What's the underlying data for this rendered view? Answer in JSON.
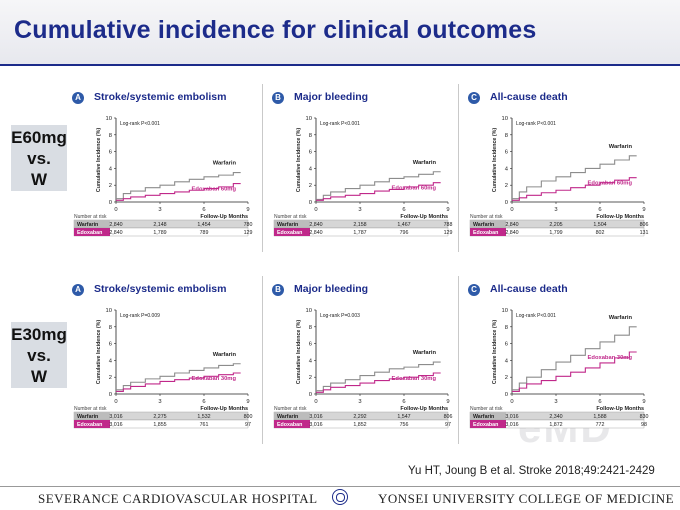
{
  "title": "Cumulative incidence for clinical outcomes",
  "rows": [
    {
      "label": [
        "E60mg",
        "vs.",
        "W"
      ]
    },
    {
      "label": [
        "E30mg",
        "vs.",
        "W"
      ]
    }
  ],
  "common": {
    "ylabel": "Cumulative Incidence (%)",
    "xlabel": "Follow-Up Months",
    "risk_title": "Number at risk",
    "warfarin_color": "#8c8c8c",
    "edoxaban_color": "#c0288a"
  },
  "chart_data": [
    {
      "type": "line",
      "panel_letter": "A",
      "title": "Stroke/systemic embolism",
      "logrank": "Log-rank P<0.001",
      "x_ticks": [
        0,
        3,
        6,
        9
      ],
      "y_ticks": [
        0,
        2,
        4,
        6,
        8,
        10
      ],
      "xlim": [
        0,
        9
      ],
      "ylim": [
        0,
        10
      ],
      "series": [
        {
          "name": "Warfarin",
          "x": [
            0,
            0.5,
            1,
            2,
            3,
            4,
            5,
            6,
            7,
            8,
            8.5
          ],
          "y": [
            0.4,
            1.0,
            1.3,
            1.7,
            2.0,
            2.4,
            2.7,
            3.0,
            3.2,
            3.5,
            3.5
          ]
        },
        {
          "name": "Edoxaban 60mg",
          "x": [
            0,
            0.5,
            1,
            2,
            3,
            4,
            5,
            6,
            7,
            8,
            8.5
          ],
          "y": [
            0.2,
            0.4,
            0.6,
            0.8,
            1.0,
            1.2,
            1.4,
            1.6,
            1.8,
            2.2,
            2.2
          ]
        }
      ],
      "risk_table": {
        "Warfarin": [
          "2,840",
          "2,148",
          "1,454",
          "780"
        ],
        "Edoxaban": [
          "2,840",
          "1,789",
          "789",
          "129"
        ]
      }
    },
    {
      "type": "line",
      "panel_letter": "B",
      "title": "Major bleeding",
      "logrank": "Log-rank P<0.001",
      "x_ticks": [
        0,
        3,
        6,
        9
      ],
      "y_ticks": [
        0,
        2,
        4,
        6,
        8,
        10
      ],
      "xlim": [
        0,
        9
      ],
      "ylim": [
        0,
        10
      ],
      "series": [
        {
          "name": "Warfarin",
          "x": [
            0,
            0.5,
            1,
            2,
            3,
            4,
            5,
            6,
            7,
            8,
            8.5
          ],
          "y": [
            0.3,
            0.8,
            1.2,
            1.6,
            2.0,
            2.4,
            2.8,
            3.0,
            3.3,
            3.6,
            3.6
          ]
        },
        {
          "name": "Edoxaban 60mg",
          "x": [
            0,
            0.5,
            1,
            2,
            3,
            4,
            5,
            6,
            7,
            8,
            8.5
          ],
          "y": [
            0.2,
            0.4,
            0.6,
            0.8,
            1.0,
            1.3,
            1.5,
            1.8,
            2.0,
            2.3,
            2.3
          ]
        }
      ],
      "risk_table": {
        "Warfarin": [
          "2,840",
          "2,158",
          "1,467",
          "788"
        ],
        "Edoxaban": [
          "2,840",
          "1,787",
          "796",
          "129"
        ]
      }
    },
    {
      "type": "line",
      "panel_letter": "C",
      "title": "All-cause death",
      "logrank": "Log-rank P<0.001",
      "x_ticks": [
        0,
        3,
        6,
        9
      ],
      "y_ticks": [
        0,
        2,
        4,
        6,
        8,
        10
      ],
      "xlim": [
        0,
        9
      ],
      "ylim": [
        0,
        10
      ],
      "series": [
        {
          "name": "Warfarin",
          "x": [
            0,
            0.5,
            1,
            2,
            3,
            4,
            5,
            6,
            7,
            8,
            8.5
          ],
          "y": [
            0.4,
            1.2,
            1.8,
            2.5,
            3.0,
            3.5,
            4.0,
            4.5,
            5.0,
            5.5,
            5.5
          ]
        },
        {
          "name": "Edoxaban 60mg",
          "x": [
            0,
            0.5,
            1,
            2,
            3,
            4,
            5,
            6,
            7,
            8,
            8.5
          ],
          "y": [
            0.2,
            0.5,
            0.8,
            1.1,
            1.4,
            1.7,
            2.0,
            2.3,
            2.6,
            2.9,
            2.9
          ]
        }
      ],
      "risk_table": {
        "Warfarin": [
          "2,840",
          "2,205",
          "1,504",
          "806"
        ],
        "Edoxaban": [
          "2,840",
          "1,799",
          "802",
          "131"
        ]
      }
    },
    {
      "type": "line",
      "panel_letter": "A",
      "title": "Stroke/systemic embolism",
      "logrank": "Log-rank P=0.009",
      "x_ticks": [
        0,
        3,
        6,
        9
      ],
      "y_ticks": [
        0,
        2,
        4,
        6,
        8,
        10
      ],
      "xlim": [
        0,
        9
      ],
      "ylim": [
        0,
        10
      ],
      "series": [
        {
          "name": "Warfarin",
          "x": [
            0,
            0.5,
            1,
            2,
            3,
            4,
            5,
            6,
            7,
            8,
            8.5
          ],
          "y": [
            0.5,
            1.0,
            1.4,
            1.8,
            2.1,
            2.5,
            2.8,
            3.1,
            3.4,
            3.6,
            3.6
          ]
        },
        {
          "name": "Edoxaban 30mg",
          "x": [
            0,
            0.5,
            1,
            2,
            3,
            4,
            5,
            6,
            7,
            8,
            8.5
          ],
          "y": [
            0.3,
            0.6,
            0.9,
            1.2,
            1.5,
            1.7,
            1.9,
            2.1,
            2.3,
            2.5,
            2.5
          ]
        }
      ],
      "risk_table": {
        "Warfarin": [
          "3,016",
          "2,275",
          "1,532",
          "800"
        ],
        "Edoxaban": [
          "3,016",
          "1,855",
          "761",
          "97"
        ]
      }
    },
    {
      "type": "line",
      "panel_letter": "B",
      "title": "Major bleeding",
      "logrank": "Log-rank P=0.003",
      "x_ticks": [
        0,
        3,
        6,
        9
      ],
      "y_ticks": [
        0,
        2,
        4,
        6,
        8,
        10
      ],
      "xlim": [
        0,
        9
      ],
      "ylim": [
        0,
        10
      ],
      "series": [
        {
          "name": "Warfarin",
          "x": [
            0,
            0.5,
            1,
            2,
            3,
            4,
            5,
            6,
            7,
            8,
            8.5
          ],
          "y": [
            0.4,
            0.9,
            1.3,
            1.7,
            2.2,
            2.6,
            3.0,
            3.2,
            3.5,
            3.8,
            3.8
          ]
        },
        {
          "name": "Edoxaban 30mg",
          "x": [
            0,
            0.5,
            1,
            2,
            3,
            4,
            5,
            6,
            7,
            8,
            8.5
          ],
          "y": [
            0.2,
            0.5,
            0.8,
            1.0,
            1.3,
            1.6,
            1.8,
            2.0,
            2.2,
            2.5,
            2.5
          ]
        }
      ],
      "risk_table": {
        "Warfarin": [
          "3,016",
          "2,292",
          "1,547",
          "806"
        ],
        "Edoxaban": [
          "3,016",
          "1,852",
          "756",
          "97"
        ]
      }
    },
    {
      "type": "line",
      "panel_letter": "C",
      "title": "All-cause death",
      "logrank": "Log-rank P<0.001",
      "x_ticks": [
        0,
        3,
        6,
        9
      ],
      "y_ticks": [
        0,
        2,
        4,
        6,
        8,
        10
      ],
      "xlim": [
        0,
        9
      ],
      "ylim": [
        0,
        10
      ],
      "series": [
        {
          "name": "Warfarin",
          "x": [
            0,
            0.5,
            1,
            2,
            3,
            4,
            5,
            6,
            7,
            8,
            8.5
          ],
          "y": [
            0.5,
            1.3,
            2.0,
            2.9,
            3.8,
            4.6,
            5.4,
            6.2,
            7.0,
            8.0,
            8.0
          ]
        },
        {
          "name": "Edoxaban 30mg",
          "x": [
            0,
            0.5,
            1,
            2,
            3,
            4,
            5,
            6,
            7,
            8,
            8.5
          ],
          "y": [
            0.3,
            0.7,
            1.2,
            1.6,
            2.1,
            2.6,
            3.1,
            3.7,
            4.3,
            5.0,
            5.0
          ]
        }
      ],
      "risk_table": {
        "Warfarin": [
          "3,016",
          "2,340",
          "1,588",
          "830"
        ],
        "Edoxaban": [
          "3,016",
          "1,872",
          "772",
          "98"
        ]
      }
    }
  ],
  "citation": "Yu HT, Joung B et al. Stroke 2018;49:2421-2429",
  "footer": {
    "left": "SEVERANCE CARDIOVASCULAR HOSPITAL",
    "right": "YONSEI UNIVERSITY COLLEGE OF MEDICINE"
  }
}
